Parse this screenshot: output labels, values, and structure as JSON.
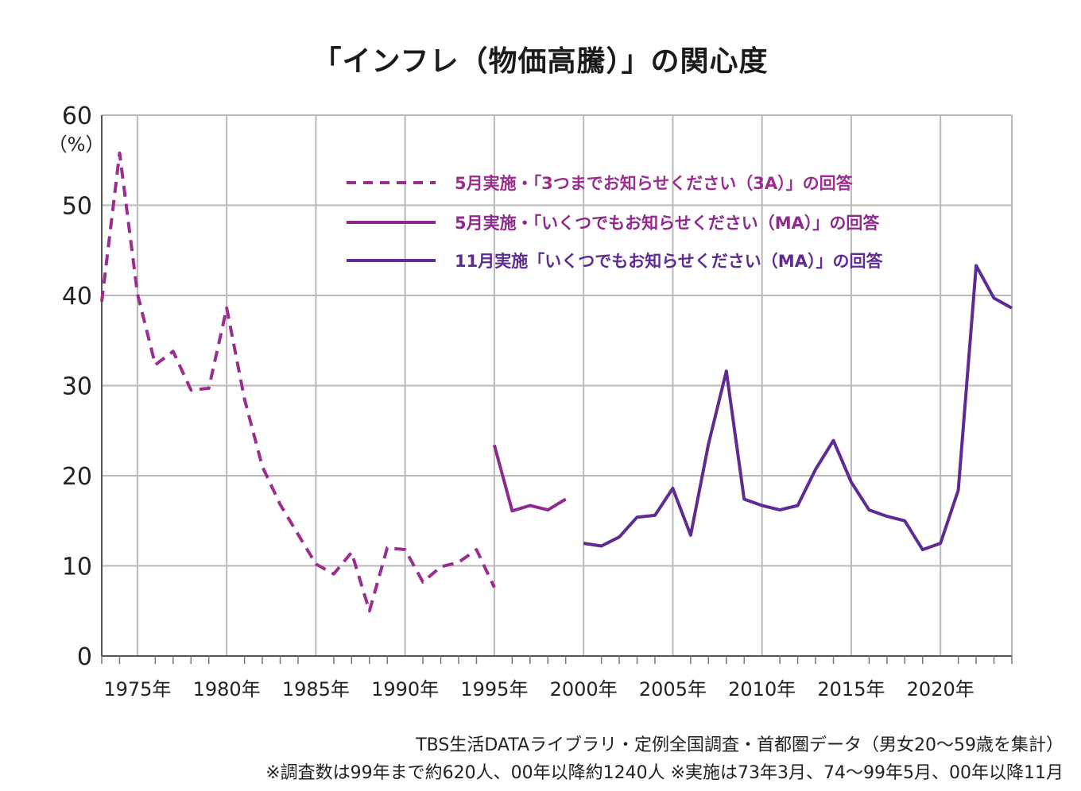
{
  "chart_data": {
    "type": "line",
    "title": "「インフレ（物価高騰）」の関心度",
    "unit_label": "（%）",
    "ylim": [
      0,
      60
    ],
    "yticks": [
      "0",
      "10",
      "20",
      "30",
      "40",
      "50",
      "60"
    ],
    "xlim": [
      1973,
      2024
    ],
    "xtick_years": [
      1975,
      1980,
      1985,
      1990,
      1995,
      2000,
      2005,
      2010,
      2015,
      2020
    ],
    "xtick_labels": [
      "1975年",
      "1980年",
      "1985年",
      "1990年",
      "1995年",
      "2000年",
      "2005年",
      "2010年",
      "2015年",
      "2020年"
    ],
    "grid": true,
    "legend_position": "top-center",
    "series": [
      {
        "name": "5月実施・「3つまでお知らせください（3A）」の回答",
        "color": "#9b2d8f",
        "dash": true,
        "x": [
          1973,
          1974,
          1975,
          1976,
          1977,
          1978,
          1979,
          1980,
          1981,
          1982,
          1983,
          1984,
          1985,
          1986,
          1987,
          1988,
          1989,
          1990,
          1991,
          1992,
          1993,
          1994,
          1995
        ],
        "values": [
          39.3,
          55.8,
          40.2,
          32.3,
          33.8,
          29.5,
          29.7,
          38.6,
          28.5,
          21.0,
          16.8,
          13.5,
          10.2,
          9.1,
          11.5,
          5.0,
          12.0,
          11.8,
          8.2,
          9.9,
          10.4,
          11.8,
          7.6
        ]
      },
      {
        "name": "5月実施・「いくつでもお知らせください（MA）」の回答",
        "color": "#8e2a8e",
        "dash": false,
        "x": [
          1995,
          1996,
          1997,
          1998,
          1999
        ],
        "values": [
          23.4,
          16.1,
          16.7,
          16.2,
          17.4
        ]
      },
      {
        "name": "11月実施「いくつでもお知らせください（MA）」の回答",
        "color": "#5e2b93",
        "dash": false,
        "x": [
          2000,
          2001,
          2002,
          2003,
          2004,
          2005,
          2006,
          2007,
          2008,
          2009,
          2010,
          2011,
          2012,
          2013,
          2014,
          2015,
          2016,
          2017,
          2018,
          2019,
          2020,
          2021,
          2022,
          2023,
          2024
        ],
        "values": [
          12.5,
          12.2,
          13.2,
          15.4,
          15.6,
          18.6,
          13.4,
          23.5,
          31.6,
          17.4,
          16.7,
          16.2,
          16.7,
          20.7,
          23.9,
          19.3,
          16.2,
          15.5,
          15.0,
          11.8,
          12.5,
          18.4,
          43.3,
          39.7,
          38.6
        ]
      }
    ]
  },
  "footnotes": {
    "source": "TBS生活DATAライブラリ・定例全国調査・首都圏データ（男女20〜59歳を集計）",
    "note": "※調査数は99年まで約620人、00年以降約1240人 ※実施は73年3月、74〜99年5月、00年以降11月"
  }
}
